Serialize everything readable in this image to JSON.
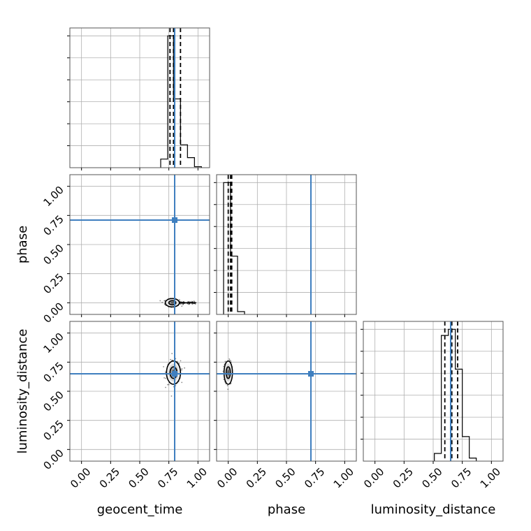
{
  "chart_data": {
    "type": "corner",
    "parameters": [
      "geocent_time",
      "phase",
      "luminosity_distance"
    ],
    "axis_range": [
      -0.1,
      1.1
    ],
    "ticks": [
      0.0,
      0.25,
      0.5,
      0.75,
      1.0
    ],
    "tick_labels": [
      "0.00",
      "0.25",
      "0.50",
      "0.75",
      "1.00"
    ],
    "grid": true,
    "truth_color": "#3f7fbf",
    "truths": {
      "geocent_time": 0.8,
      "phase": 0.71,
      "luminosity_distance": 0.65
    },
    "marginals": [
      {
        "parameter": "geocent_time",
        "bin_edges": [
          0.68,
          0.74,
          0.79,
          0.85,
          0.91,
          0.97,
          1.03
        ],
        "counts": [
          0.06,
          0.92,
          0.48,
          0.16,
          0.07,
          0.007
        ],
        "quantiles": [
          0.76,
          0.79,
          0.85
        ]
      },
      {
        "parameter": "phase",
        "bin_edges": [
          -0.04,
          0.02,
          0.08,
          0.14
        ],
        "counts": [
          0.95,
          0.42,
          0.02
        ],
        "quantiles": [
          0.0,
          0.02,
          0.03
        ]
      },
      {
        "parameter": "luminosity_distance",
        "bin_edges": [
          0.51,
          0.57,
          0.63,
          0.69,
          0.75,
          0.81,
          0.87
        ],
        "counts": [
          0.05,
          0.82,
          0.86,
          0.6,
          0.16,
          0.02
        ],
        "quantiles": [
          0.6,
          0.66,
          0.71
        ]
      }
    ],
    "joint_panels": [
      {
        "x": "geocent_time",
        "y": "phase",
        "center": [
          0.78,
          0.0
        ],
        "spread": [
          0.03,
          0.015
        ],
        "tail_to": [
          0.98,
          0.0
        ]
      },
      {
        "x": "geocent_time",
        "y": "luminosity_distance",
        "center": [
          0.79,
          0.66
        ],
        "spread": [
          0.03,
          0.05
        ]
      },
      {
        "x": "phase",
        "y": "luminosity_distance",
        "center": [
          0.0,
          0.66
        ],
        "spread": [
          0.015,
          0.05
        ]
      }
    ]
  }
}
